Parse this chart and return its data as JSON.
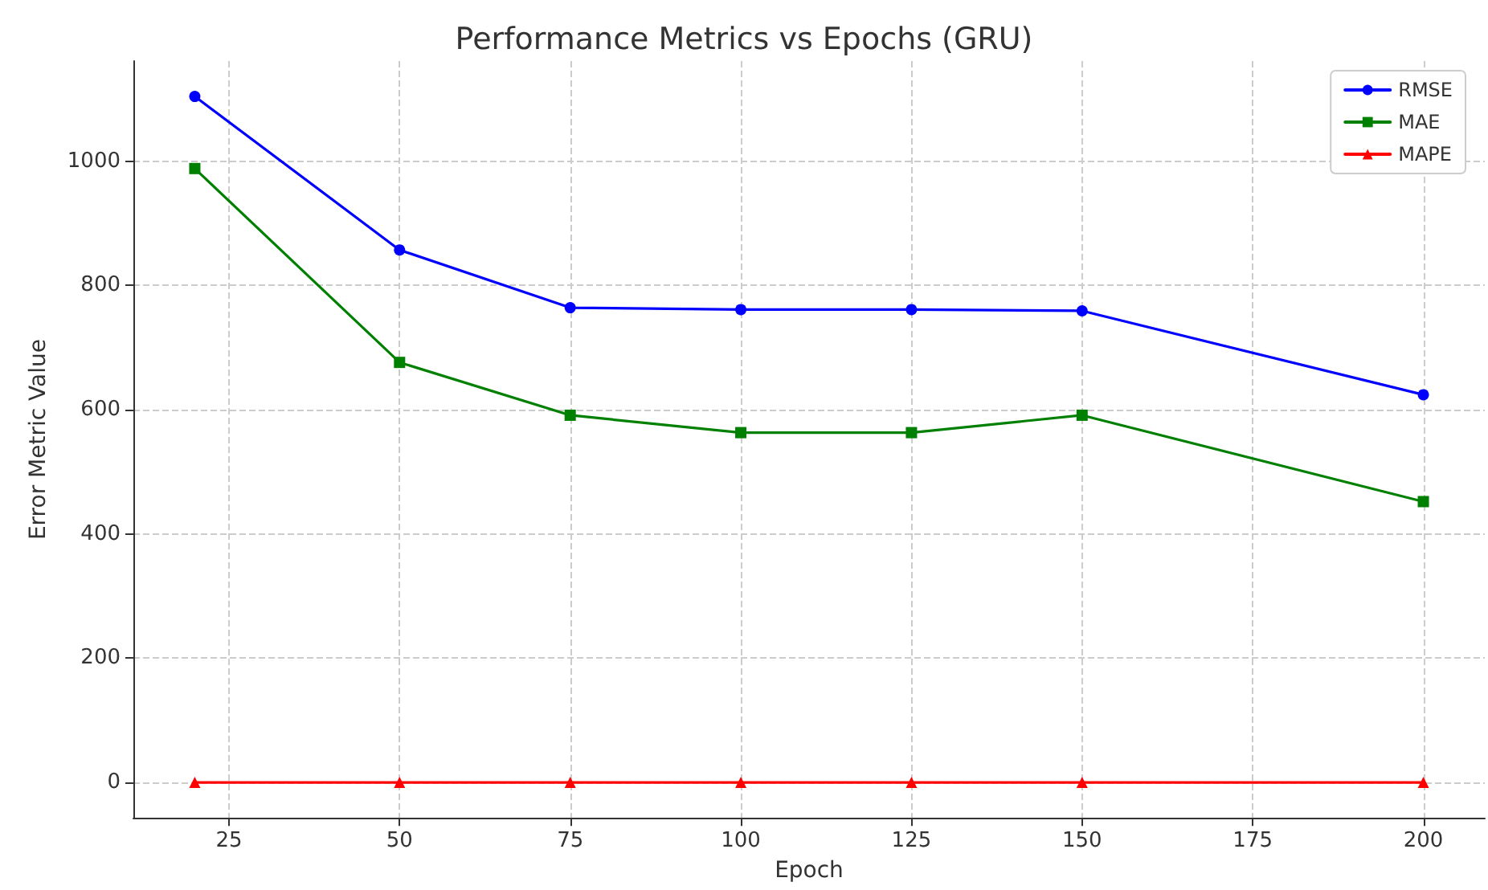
{
  "chart_data": {
    "type": "line",
    "title": "Performance Metrics vs Epochs (GRU)",
    "xlabel": "Epoch",
    "ylabel": "Error Metric Value",
    "x": [
      20,
      50,
      75,
      100,
      125,
      150,
      200
    ],
    "series": [
      {
        "name": "RMSE",
        "color": "#0000ff",
        "marker": "circle",
        "values": [
          1104,
          857,
          764,
          761,
          761,
          759,
          624
        ]
      },
      {
        "name": "MAE",
        "color": "#008000",
        "marker": "square",
        "values": [
          988,
          676,
          591,
          563,
          563,
          591,
          452
        ]
      },
      {
        "name": "MAPE",
        "color": "#ff0000",
        "marker": "triangle",
        "values": [
          0,
          0,
          0,
          0,
          0,
          0,
          0
        ]
      }
    ],
    "xlim": [
      11,
      209
    ],
    "xticks": [
      25,
      50,
      75,
      100,
      125,
      150,
      175,
      200
    ],
    "ylim": [
      -57,
      1161
    ],
    "yticks": [
      0,
      200,
      400,
      600,
      800,
      1000
    ],
    "grid": true,
    "legend": "top right",
    "line_style": "solid"
  }
}
